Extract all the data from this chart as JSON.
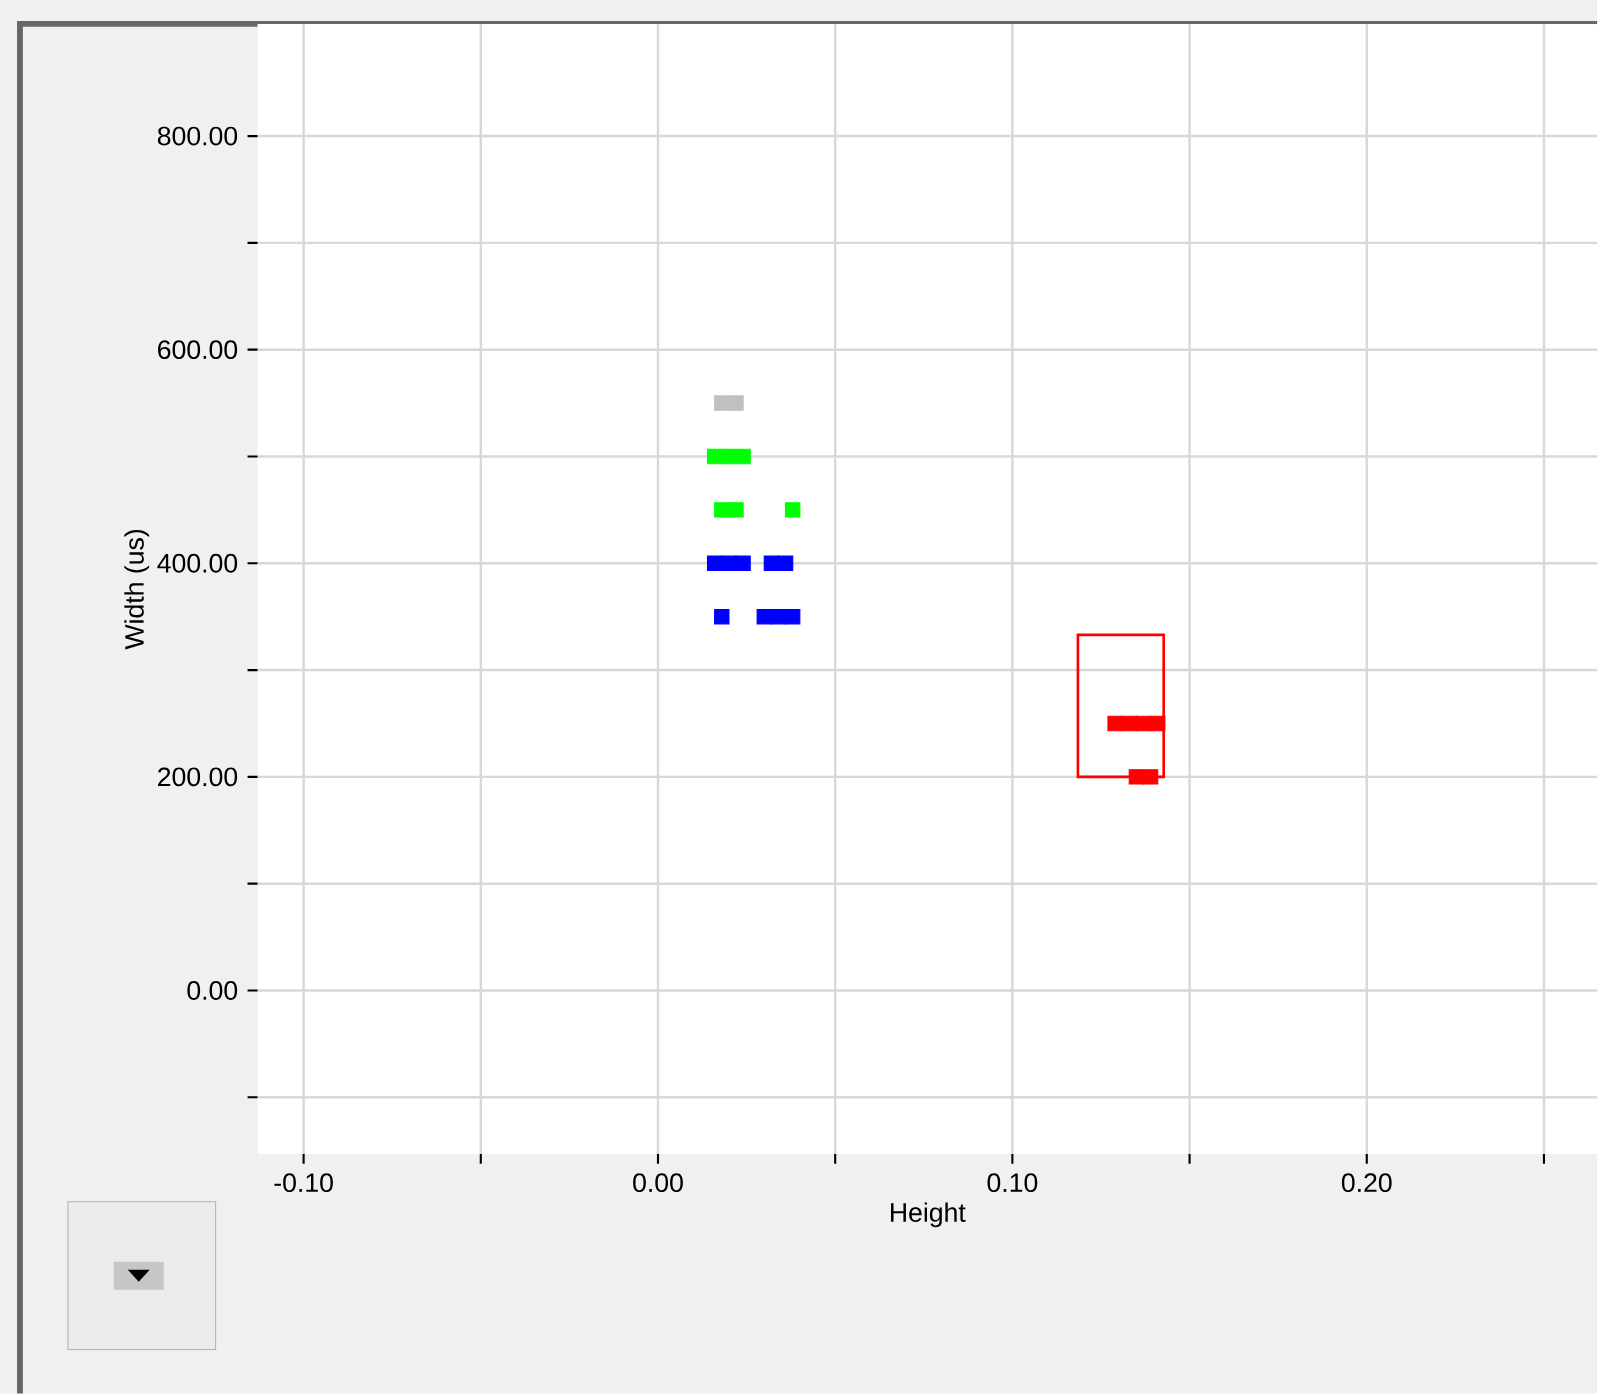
{
  "chart_data": {
    "type": "scatter",
    "xlabel": "Height",
    "ylabel": "Width (us)",
    "xlim": [
      -0.113,
      0.265
    ],
    "ylim": [
      -153,
      905
    ],
    "xticks": [
      {
        "value": -0.1,
        "label": "-0.10"
      },
      {
        "value": -0.05,
        "label": null
      },
      {
        "value": 0,
        "label": "0.00"
      },
      {
        "value": 0.05,
        "label": null
      },
      {
        "value": 0.1,
        "label": "0.10"
      },
      {
        "value": 0.15,
        "label": null
      },
      {
        "value": 0.2,
        "label": "0.20"
      },
      {
        "value": 0.25,
        "label": null
      }
    ],
    "yticks": [
      {
        "value": -100,
        "label": null
      },
      {
        "value": 0,
        "label": "0.00"
      },
      {
        "value": 100,
        "label": null
      },
      {
        "value": 200,
        "label": "200.00"
      },
      {
        "value": 300,
        "label": null
      },
      {
        "value": 400,
        "label": "400.00"
      },
      {
        "value": 500,
        "label": null
      },
      {
        "value": 600,
        "label": "600.00"
      },
      {
        "value": 700,
        "label": null
      },
      {
        "value": 800,
        "label": "800.00"
      }
    ],
    "grid": true,
    "marker": "square",
    "series": [
      {
        "color": "#c0c0c0",
        "x": [
          0.018,
          0.022
        ],
        "values": [
          550,
          550
        ]
      },
      {
        "color": "#00ff00",
        "x": [
          0.016,
          0.02,
          0.024,
          0.018,
          0.022,
          0.038
        ],
        "values": [
          500,
          500,
          500,
          450,
          450,
          450
        ]
      },
      {
        "color": "#0000ff",
        "x": [
          0.016,
          0.02,
          0.024,
          0.032,
          0.036,
          0.018,
          0.03,
          0.034,
          0.038
        ],
        "values": [
          400,
          400,
          400,
          400,
          400,
          350,
          350,
          350,
          350
        ]
      },
      {
        "color": "#ff0000",
        "x": [
          0.129,
          0.133,
          0.137,
          0.141,
          0.135,
          0.139
        ],
        "values": [
          250,
          250,
          250,
          250,
          200,
          200
        ]
      }
    ]
  }
}
